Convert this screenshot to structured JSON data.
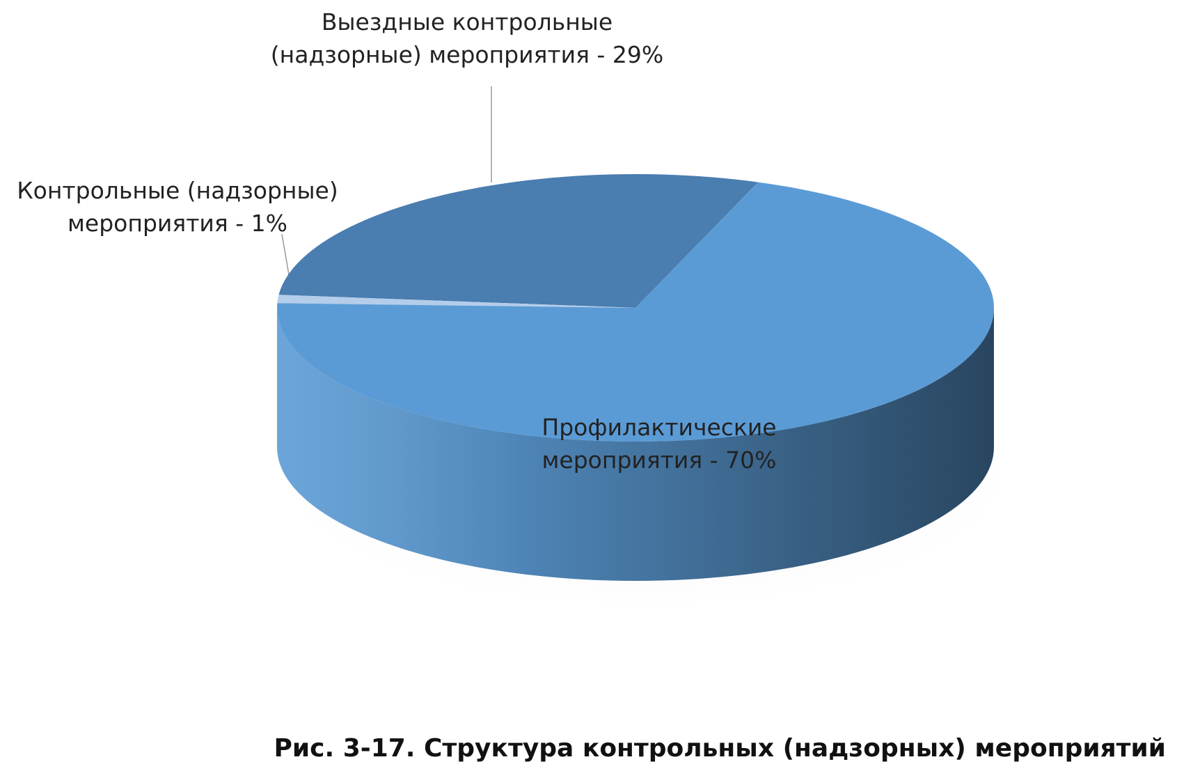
{
  "chart_data": {
    "type": "pie",
    "title": "Рис. 3-17. Структура контрольных (надзорных) мероприятий",
    "values": [
      29,
      1,
      70
    ],
    "value_labels": [
      "Выездные контрольные (надзорные) мероприятия - 29%",
      "Контрольные (надзорные) мероприятия - 1%",
      "Профилактические мероприятия - 70%"
    ],
    "colors": [
      "#4a7db0",
      "#b4cdea",
      "#5b9bd5"
    ]
  }
}
